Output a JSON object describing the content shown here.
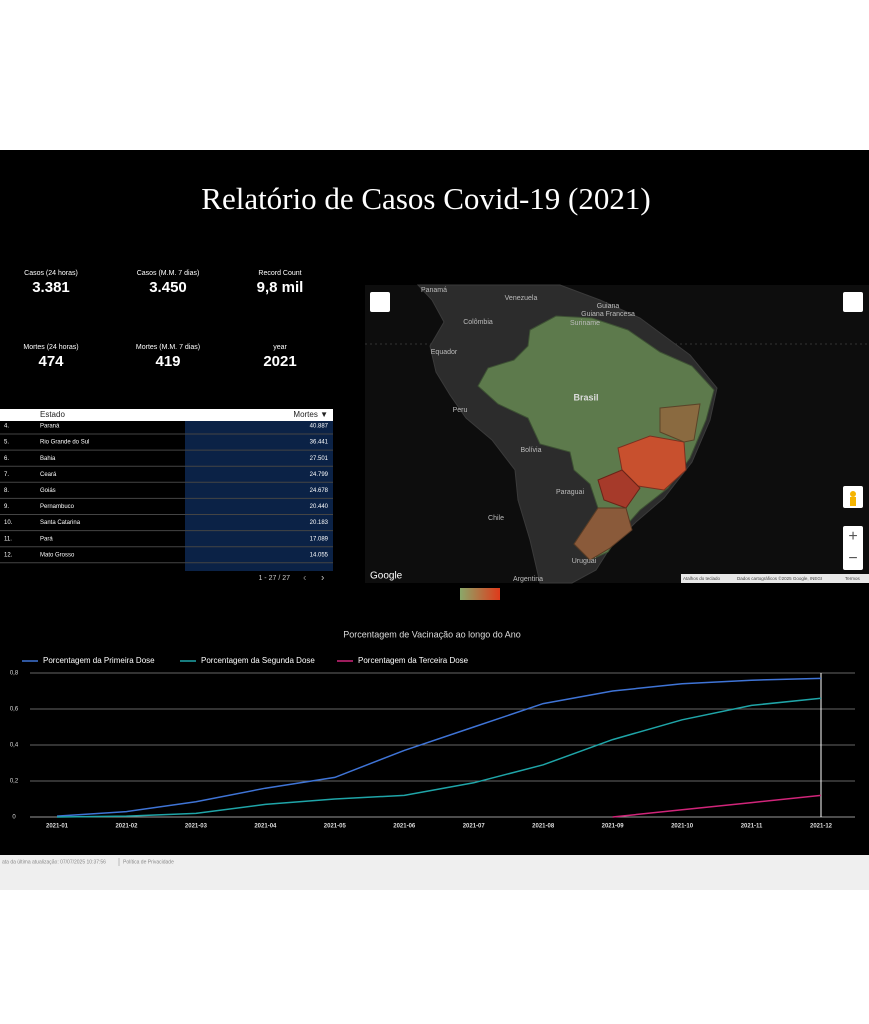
{
  "header": {
    "title": "Relatório de Casos Covid-19 (2021)"
  },
  "kpis": [
    {
      "label": "Casos (24 horas)",
      "value": "3.381"
    },
    {
      "label": "Casos (M.M. 7 dias)",
      "value": "3.450"
    },
    {
      "label": "Record Count",
      "value": "9,8 mil"
    },
    {
      "label": "Mortes (24 horas)",
      "value": "474"
    },
    {
      "label": "Mortes (M.M. 7 dias)",
      "value": "419"
    },
    {
      "label": "year",
      "value": "2021"
    }
  ],
  "table": {
    "columns": [
      "Estado",
      "Mortes ▼"
    ],
    "rows": [
      [
        "4.",
        "Paraná",
        "40.887"
      ],
      [
        "5.",
        "Rio Grande do Sul",
        "36.441"
      ],
      [
        "6.",
        "Bahia",
        "27.501"
      ],
      [
        "7.",
        "Ceará",
        "24.799"
      ],
      [
        "8.",
        "Goiás",
        "24.678"
      ],
      [
        "9.",
        "Pernambuco",
        "20.440"
      ],
      [
        "10.",
        "Santa Catarina",
        "20.183"
      ],
      [
        "11.",
        "Pará",
        "17.089"
      ],
      [
        "12.",
        "Mato Grosso",
        "14.055"
      ]
    ],
    "pagination": "1 - 27 / 27"
  },
  "map": {
    "labels": [
      "Panamá",
      "Venezuela",
      "Guiana",
      "Guiana Francesa",
      "Suriname",
      "Colômbia",
      "Equador",
      "Peru",
      "Brasil",
      "Bolívia",
      "Paraguai",
      "Chile",
      "Uruguai",
      "Argentina"
    ],
    "logo": "Google",
    "attribution": [
      "Atalhos do teclado",
      "Dados cartográficos ©2025 Google, INEGI",
      "Termos"
    ]
  },
  "chart_data": {
    "type": "line",
    "title": "Porcentagem de Vacinação ao longo do Ano",
    "categories": [
      "2021-01",
      "2021-02",
      "2021-03",
      "2021-04",
      "2021-05",
      "2021-06",
      "2021-07",
      "2021-08",
      "2021-09",
      "2021-10",
      "2021-11",
      "2021-12"
    ],
    "series": [
      {
        "name": "Porcentagem da Primeira Dose",
        "color": "#3f74d6",
        "values": [
          0.005,
          0.03,
          0.085,
          0.16,
          0.22,
          0.37,
          0.5,
          0.63,
          0.7,
          0.74,
          0.76,
          0.77
        ]
      },
      {
        "name": "Porcentagem da Segunda Dose",
        "color": "#1fa5a8",
        "values": [
          0,
          0.005,
          0.02,
          0.07,
          0.1,
          0.12,
          0.19,
          0.29,
          0.43,
          0.54,
          0.62,
          0.66
        ]
      },
      {
        "name": "Porcentagem da Terceira Dose",
        "color": "#d1257a",
        "values": [
          null,
          null,
          null,
          null,
          null,
          null,
          null,
          null,
          0,
          0.04,
          0.08,
          0.12
        ]
      }
    ],
    "ylim": [
      0,
      0.8
    ],
    "yticks": [
      0,
      {
        "value": 0.2,
        "label": "0,2"
      },
      {
        "value": 0.4,
        "label": "0,4"
      },
      {
        "value": 0.6,
        "label": "0,6"
      },
      {
        "value": 0.8,
        "label": "0,8"
      }
    ],
    "grid": true
  },
  "footer": {
    "updated": "ata da última atualização: 07/07/2025 10:37:56",
    "privacy": "Política de Privacidade"
  }
}
